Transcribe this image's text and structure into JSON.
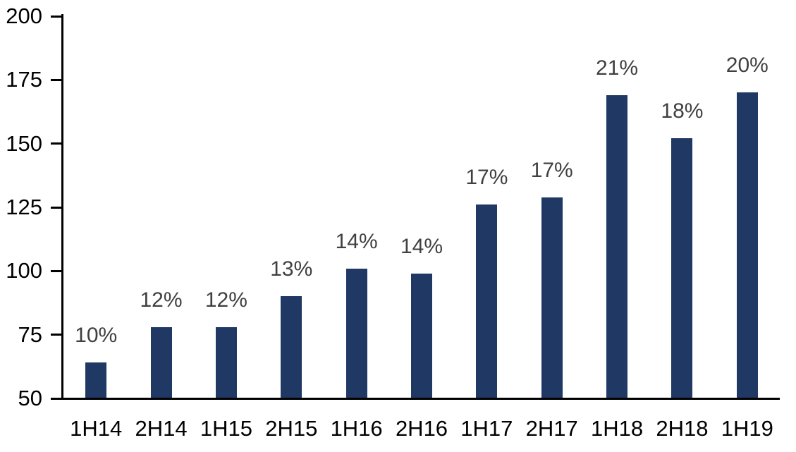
{
  "chart_data": {
    "type": "bar",
    "title": "",
    "xlabel": "",
    "ylabel": "",
    "categories": [
      "1H14",
      "2H14",
      "1H15",
      "2H15",
      "1H16",
      "2H16",
      "1H17",
      "2H17",
      "1H18",
      "2H18",
      "1H19"
    ],
    "values": [
      64,
      78,
      78,
      90,
      101,
      99,
      126,
      129,
      169,
      152,
      170
    ],
    "bar_labels": [
      "10%",
      "12%",
      "12%",
      "13%",
      "14%",
      "14%",
      "17%",
      "17%",
      "21%",
      "18%",
      "20%"
    ],
    "ylim": [
      50,
      200
    ],
    "ytick_step": 25,
    "yticks": [
      50,
      75,
      100,
      125,
      150,
      175,
      200
    ],
    "grid": false,
    "legend": "none",
    "colors": {
      "bar": "#1F3864",
      "bar_label_text": "#404040",
      "axis": "#000000",
      "axis_text": "#000000",
      "background": "#FFFFFF"
    }
  }
}
